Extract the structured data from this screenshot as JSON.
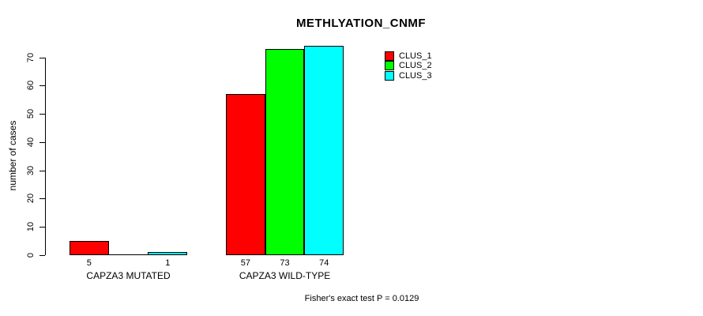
{
  "title": "METHLYATION_CNMF",
  "colors": {
    "background": "#ffffff",
    "axis": "#000000",
    "text": "#000000",
    "clus_1": "#ff0000",
    "clus_2": "#00ff00",
    "clus_3": "#00ffff"
  },
  "chart_data": {
    "type": "bar",
    "title": "METHLYATION_CNMF",
    "xlabel": "",
    "ylabel": "number of cases",
    "ylim": [
      0,
      74
    ],
    "yticks": [
      0,
      10,
      20,
      30,
      40,
      50,
      60,
      70
    ],
    "grid": false,
    "categories": [
      "CAPZA3 MUTATED",
      "CAPZA3 WILD-TYPE"
    ],
    "series": [
      {
        "name": "CLUS_1",
        "color": "#ff0000",
        "values": [
          5,
          57
        ]
      },
      {
        "name": "CLUS_2",
        "color": "#00ff00",
        "values": [
          0,
          73
        ]
      },
      {
        "name": "CLUS_3",
        "color": "#00ffff",
        "values": [
          1,
          74
        ]
      }
    ],
    "bar_labels": [
      [
        "5",
        "",
        "1"
      ],
      [
        "57",
        "73",
        "74"
      ]
    ],
    "legend": {
      "position": "top-right",
      "entries": [
        {
          "label": "CLUS_1",
          "color": "#ff0000"
        },
        {
          "label": "CLUS_2",
          "color": "#00ff00"
        },
        {
          "label": "CLUS_3",
          "color": "#00ffff"
        }
      ]
    },
    "annotation": "Fisher's exact test P = 0.0129"
  }
}
